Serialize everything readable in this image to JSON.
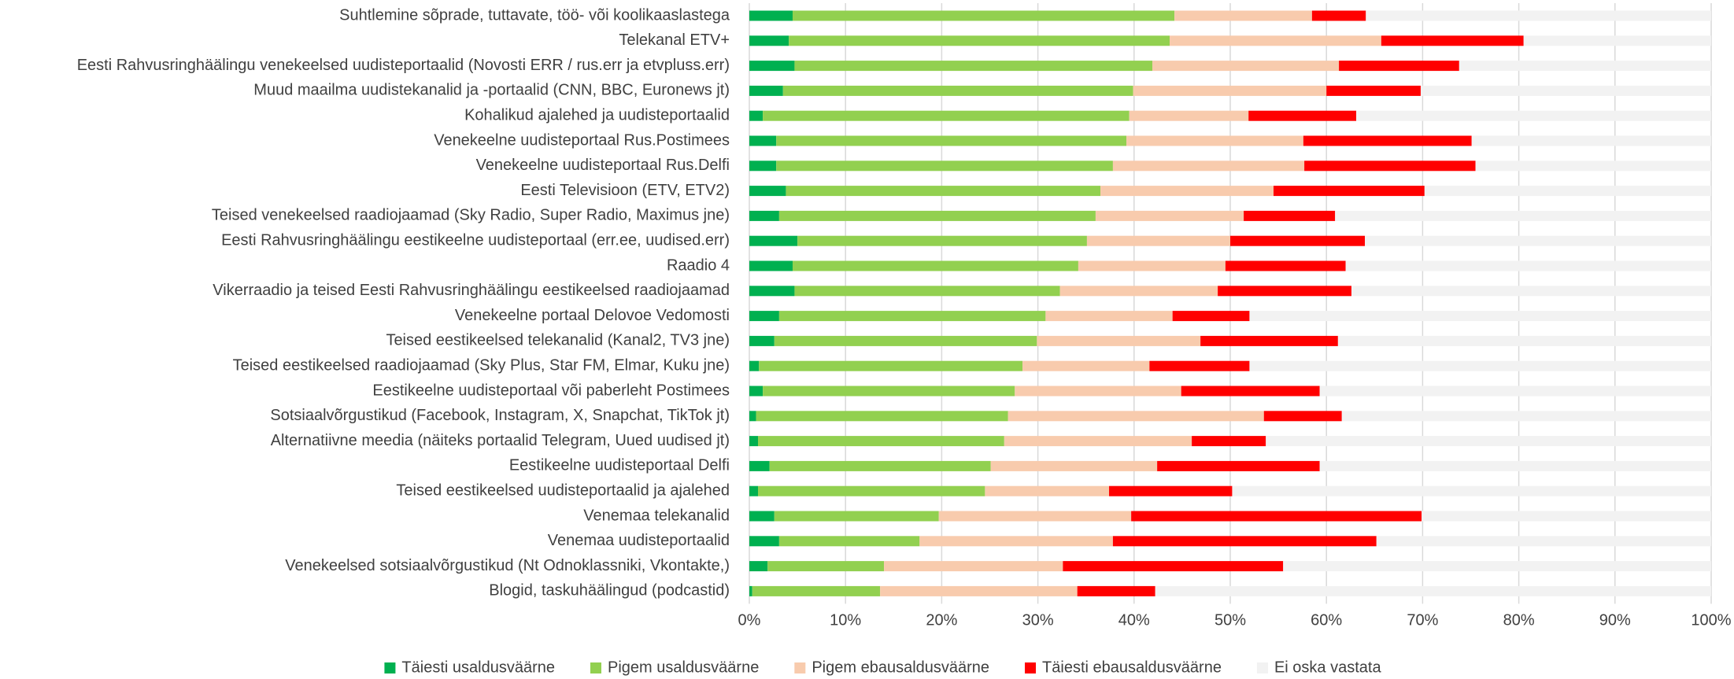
{
  "chart_data": {
    "type": "stacked-bar-horizontal",
    "categories": [
      "Suhtlemine sõprade, tuttavate, töö- või koolikaaslastega",
      "Telekanal ETV+",
      "Eesti Rahvusringhäälingu venekeelsed uudisteportaalid (Novosti ERR / rus.err ja etvpluss.err)",
      "Muud maailma uudistekanalid ja -portaalid (CNN, BBC, Euronews jt)",
      "Kohalikud ajalehed ja uudisteportaalid",
      "Venekeelne uudisteportaal Rus.Postimees",
      "Venekeelne uudisteportaal Rus.Delfi",
      "Eesti Televisioon (ETV, ETV2)",
      "Teised venekeelsed raadiojaamad (Sky Radio, Super Radio, Maximus jne)",
      "Eesti Rahvusringhäälingu eestikeelne uudisteportaal (err.ee, uudised.err)",
      "Raadio 4",
      "Vikerraadio ja teised Eesti Rahvusringhäälingu eestikeelsed raadiojaamad",
      "Venekeelne portaal Delovoe Vedomosti",
      "Teised eestikeelsed telekanalid (Kanal2, TV3 jne)",
      "Teised eestikeelsed raadiojaamad (Sky Plus, Star FM, Elmar, Kuku jne)",
      "Eestikeelne uudisteportaal või paberleht Postimees",
      "Sotsiaalvõrgustikud (Facebook, Instagram, X, Snapchat, TikTok jt)",
      "Alternatiivne meedia (näiteks portaalid Telegram, Uued uudised jt)",
      "Eestikeelne uudisteportaal Delfi",
      "Teised eestikeelsed uudisteportaalid ja ajalehed",
      "Venemaa telekanalid",
      "Venemaa uudisteportaalid",
      "Venekeelsed sotsiaalvõrgustikud (Nt Odnoklassniki, Vkontakte,)",
      "Blogid, taskuhäälingud (podcastid)"
    ],
    "series": [
      {
        "name": "Täiesti usaldusväärne",
        "color": "#00b050",
        "values": [
          4.5,
          4.1,
          4.7,
          3.5,
          1.4,
          2.8,
          2.8,
          3.8,
          3.1,
          5.0,
          4.5,
          4.7,
          3.1,
          2.6,
          1.0,
          1.4,
          0.7,
          0.9,
          2.1,
          0.9,
          2.6,
          3.1,
          1.9,
          0.3
        ]
      },
      {
        "name": "Pigem usaldusväärne",
        "color": "#92d050",
        "values": [
          39.7,
          39.6,
          37.2,
          36.4,
          38.1,
          36.4,
          35.0,
          32.7,
          32.9,
          30.1,
          29.7,
          27.6,
          27.7,
          27.3,
          27.4,
          26.2,
          26.2,
          25.6,
          23.0,
          23.6,
          17.1,
          14.6,
          12.1,
          13.3
        ]
      },
      {
        "name": "Pigem ebausaldusväärne",
        "color": "#f8cbad",
        "values": [
          14.3,
          22.0,
          19.4,
          20.1,
          12.4,
          18.4,
          19.9,
          18.0,
          15.4,
          14.9,
          15.3,
          16.4,
          13.2,
          17.0,
          13.2,
          17.3,
          26.6,
          19.5,
          17.3,
          12.9,
          20.0,
          20.1,
          18.6,
          20.5
        ]
      },
      {
        "name": "Täiesti ebausaldusväärne",
        "color": "#ff0000",
        "values": [
          5.6,
          14.8,
          12.5,
          9.8,
          11.2,
          17.5,
          17.8,
          15.7,
          9.5,
          14.0,
          12.5,
          13.9,
          8.0,
          14.3,
          10.4,
          14.4,
          8.1,
          7.7,
          16.9,
          12.8,
          30.2,
          27.4,
          22.9,
          8.1
        ]
      },
      {
        "name": "Ei oska vastata",
        "color": "#f2f2f2",
        "values": [
          35.9,
          19.5,
          26.2,
          30.2,
          36.9,
          24.9,
          24.5,
          29.8,
          39.1,
          36.0,
          38.0,
          37.4,
          48.0,
          38.8,
          48.0,
          40.7,
          38.4,
          46.3,
          40.7,
          49.8,
          30.1,
          34.8,
          44.5,
          57.8
        ]
      }
    ],
    "xlim": [
      0,
      100
    ],
    "xticks": [
      {
        "value": 0,
        "label": "0%"
      },
      {
        "value": 10,
        "label": "10%"
      },
      {
        "value": 20,
        "label": "20%"
      },
      {
        "value": 30,
        "label": "30%"
      },
      {
        "value": 40,
        "label": "40%"
      },
      {
        "value": 50,
        "label": "50%"
      },
      {
        "value": 60,
        "label": "60%"
      },
      {
        "value": 70,
        "label": "70%"
      },
      {
        "value": 80,
        "label": "80%"
      },
      {
        "value": 90,
        "label": "90%"
      },
      {
        "value": 100,
        "label": "100%"
      }
    ],
    "grid": true,
    "legend": "bottom"
  }
}
